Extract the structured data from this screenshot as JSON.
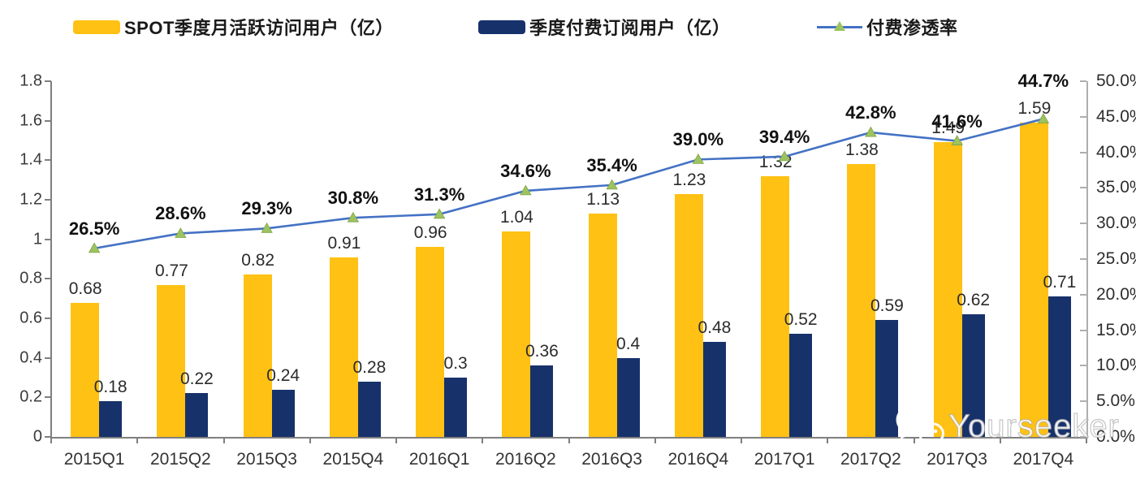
{
  "legend": {
    "items": [
      {
        "label": "SPOT季度月活跃访问用户（亿）",
        "swatch": "bar",
        "color": "#FFC113"
      },
      {
        "label": "季度付费订阅用户（亿）",
        "swatch": "bar",
        "color": "#17316B"
      },
      {
        "label": "付费渗透率",
        "swatch": "line",
        "color": "#4472C4",
        "marker_color": "#9DC360"
      }
    ]
  },
  "chart_data": {
    "type": "bar",
    "subtype": "grouped bars + line on secondary axis",
    "categories": [
      "2015Q1",
      "2015Q2",
      "2015Q3",
      "2015Q4",
      "2016Q1",
      "2016Q2",
      "2016Q3",
      "2016Q4",
      "2017Q1",
      "2017Q2",
      "2017Q3",
      "2017Q4"
    ],
    "series": [
      {
        "name": "SPOT季度月活跃访问用户（亿）",
        "type": "bar",
        "axis": "left",
        "color": "#FFC113",
        "values": [
          0.68,
          0.77,
          0.82,
          0.91,
          0.96,
          1.04,
          1.13,
          1.23,
          1.32,
          1.38,
          1.49,
          1.59
        ],
        "labels": [
          "0.68",
          "0.77",
          "0.82",
          "0.91",
          "0.96",
          "1.04",
          "1.13",
          "1.23",
          "1.32",
          "1.38",
          "1.49",
          "1.59"
        ]
      },
      {
        "name": "季度付费订阅用户（亿）",
        "type": "bar",
        "axis": "left",
        "color": "#17316B",
        "values": [
          0.18,
          0.22,
          0.24,
          0.28,
          0.3,
          0.36,
          0.4,
          0.48,
          0.52,
          0.59,
          0.62,
          0.71
        ],
        "labels": [
          "0.18",
          "0.22",
          "0.24",
          "0.28",
          "0.3",
          "0.36",
          "0.4",
          "0.48",
          "0.52",
          "0.59",
          "0.62",
          "0.71"
        ]
      },
      {
        "name": "付费渗透率",
        "type": "line",
        "axis": "right",
        "color": "#4472C4",
        "marker": "triangle-up",
        "marker_color": "#9DC360",
        "values": [
          26.5,
          28.6,
          29.3,
          30.8,
          31.3,
          34.6,
          35.4,
          39.0,
          39.4,
          42.8,
          41.6,
          44.7
        ],
        "labels": [
          "26.5%",
          "28.6%",
          "29.3%",
          "30.8%",
          "31.3%",
          "34.6%",
          "35.4%",
          "39.0%",
          "39.4%",
          "42.8%",
          "41.6%",
          "44.7%"
        ]
      }
    ],
    "left_axis": {
      "min": 0,
      "max": 1.8,
      "ticks": [
        "0",
        "0.2",
        "0.4",
        "0.6",
        "0.8",
        "1",
        "1.2",
        "1.4",
        "1.6",
        "1.8"
      ]
    },
    "right_axis": {
      "min": 0,
      "max": 50,
      "ticks": [
        "0.0%",
        "5.0%",
        "10.0%",
        "15.0%",
        "20.0%",
        "25.0%",
        "30.0%",
        "35.0%",
        "40.0%",
        "45.0%",
        "50.0%"
      ]
    },
    "grid": false,
    "legend_position": "top",
    "title": ""
  },
  "watermark": {
    "text": "Yourseeker",
    "icon": "wechat-icon"
  }
}
